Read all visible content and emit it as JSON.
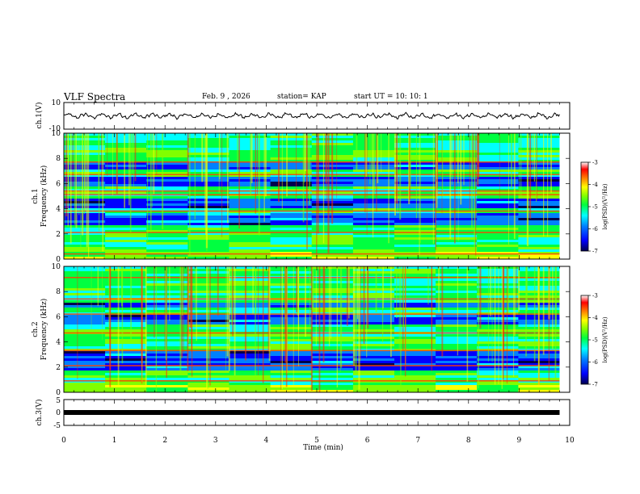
{
  "header": {
    "title": "VLF Spectra",
    "date": "Feb. 9 , 2026",
    "station": "station= KAP",
    "start": "start  UT  =  10: 10: 1"
  },
  "chart_data": {
    "type": "heatmap",
    "title": "VLF Spectra",
    "x": {
      "label": "Time  (min)",
      "range": [
        0,
        10
      ],
      "ticks": [
        "0",
        "1",
        "2",
        "3",
        "4",
        "5",
        "6",
        "7",
        "8",
        "9",
        "10"
      ]
    },
    "panels": [
      {
        "id": "ch1-waveform",
        "type": "line",
        "ylabel": "ch.1(V)",
        "ylim": [
          -10,
          10
        ],
        "yticks": [
          "10",
          "-10"
        ],
        "trace_range_visible": [
          -3,
          3
        ]
      },
      {
        "id": "ch1-spectrogram",
        "type": "heatmap",
        "ylabel": "ch.1\nFrequency  (kHz)",
        "ylabel_lines": [
          "ch.1",
          "Frequency  (kHz)"
        ],
        "ylim": [
          0,
          10
        ],
        "yticks": [
          "0",
          "2",
          "4",
          "6",
          "8",
          "10"
        ],
        "blue_bands_khz": [
          [
            2.6,
            3.6
          ],
          [
            4.1,
            4.8
          ],
          [
            5.8,
            6.5
          ],
          [
            7.2,
            7.6
          ]
        ],
        "red_lines_khz": [
          0.4,
          2.1,
          3.8,
          5.1,
          5.4,
          6.7,
          7.7
        ],
        "colorbar": {
          "label": "log(PSD)(V²/Hz)",
          "range": [
            -7,
            -3
          ],
          "ticks": [
            "-3",
            "-4",
            "-5",
            "-6",
            "-7"
          ]
        }
      },
      {
        "id": "ch2-spectrogram",
        "type": "heatmap",
        "ylabel": "ch.2\nFrequency  (kHz)",
        "ylabel_lines": [
          "ch.2",
          "Frequency  (kHz)"
        ],
        "ylim": [
          0,
          10
        ],
        "yticks": [
          "0",
          "2",
          "4",
          "6",
          "8",
          "10"
        ],
        "blue_bands_khz": [
          [
            1.8,
            3.3
          ],
          [
            5.4,
            6.1
          ],
          [
            6.7,
            7.2
          ]
        ],
        "red_lines_khz": [
          0.9,
          2.1,
          3.3,
          4.7,
          6.2,
          7.4,
          9.1
        ],
        "colorbar": {
          "label": "log(PSD)(V²/Hz)",
          "range": [
            -7,
            -3
          ],
          "ticks": [
            "-3",
            "-4",
            "-5",
            "-6",
            "-7"
          ]
        }
      },
      {
        "id": "ch3-waveform",
        "type": "line",
        "ylabel": "ch.3(V)",
        "ylim": [
          -5,
          5
        ],
        "yticks": [
          "5",
          "0",
          "-5"
        ],
        "level_v": 0
      }
    ],
    "x_data_end_min": 9.8
  },
  "colors": {
    "colormap": [
      "#00004c",
      "#0000ff",
      "#0080ff",
      "#00ffff",
      "#00ff40",
      "#80ff00",
      "#ffff00",
      "#ff8000",
      "#ff0000",
      "#ffffff"
    ],
    "trace": "#000000",
    "axis": "#000000"
  }
}
